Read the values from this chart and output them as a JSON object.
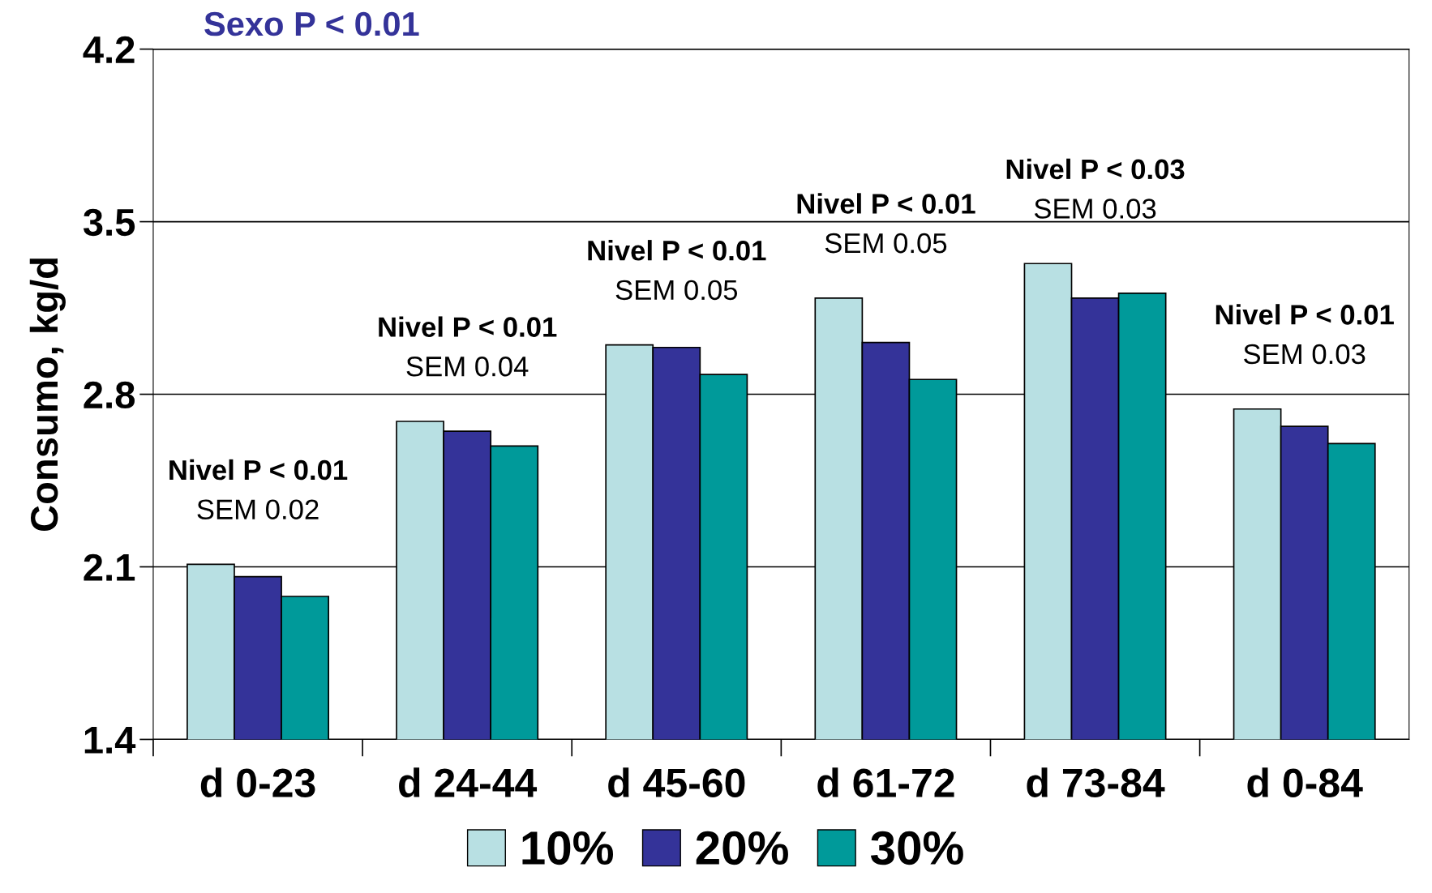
{
  "chart_data": {
    "type": "bar",
    "title": "Sexo P < 0.01",
    "ylabel": "Consumo, kg/d",
    "categories": [
      "d 0-23",
      "d 24-44",
      "d 45-60",
      "d 61-72",
      "d 73-84",
      "d 0-84"
    ],
    "series": [
      {
        "name": "10%",
        "color": "#b8e0e3",
        "values": [
          2.11,
          2.69,
          3.0,
          3.19,
          3.33,
          2.74
        ]
      },
      {
        "name": "20%",
        "color": "#343399",
        "values": [
          2.06,
          2.65,
          2.99,
          3.01,
          3.19,
          2.67
        ]
      },
      {
        "name": "30%",
        "color": "#009a9a",
        "values": [
          1.98,
          2.59,
          2.88,
          2.86,
          3.21,
          2.6
        ]
      }
    ],
    "ylim": [
      1.4,
      4.2
    ],
    "yticks": [
      1.4,
      2.1,
      2.8,
      3.5,
      4.2
    ],
    "grid": "y",
    "legend": "bottom",
    "annotations": [
      "Nivel P < 0.01\nSEM 0.02",
      "Nivel P < 0.01\nSEM 0.04",
      "Nivel P < 0.01\nSEM 0.05",
      "Nivel P < 0.01\nSEM 0.05",
      "Nivel P < 0.03\nSEM 0.03",
      "Nivel P < 0.01\nSEM 0.03"
    ]
  }
}
